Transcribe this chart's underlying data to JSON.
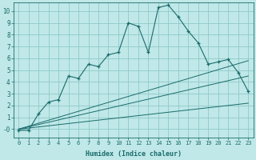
{
  "title": "",
  "xlabel": "Humidex (Indice chaleur)",
  "background_color": "#c0e8e8",
  "grid_color": "#90c8c8",
  "line_color": "#1a6b6b",
  "xlim": [
    -0.5,
    23.5
  ],
  "ylim": [
    -0.7,
    10.7
  ],
  "yticks": [
    0,
    1,
    2,
    3,
    4,
    5,
    6,
    7,
    8,
    9,
    10
  ],
  "ytick_labels": [
    "-0",
    "1",
    "2",
    "3",
    "4",
    "5",
    "6",
    "7",
    "8",
    "9",
    "10"
  ],
  "xticks": [
    0,
    1,
    2,
    3,
    4,
    5,
    6,
    7,
    8,
    9,
    10,
    11,
    12,
    13,
    14,
    15,
    16,
    17,
    18,
    19,
    20,
    21,
    22,
    23
  ],
  "curve_x": [
    0,
    1,
    2,
    3,
    4,
    5,
    6,
    7,
    8,
    9,
    10,
    11,
    12,
    13,
    14,
    15,
    16,
    17,
    18,
    19,
    20,
    21,
    22,
    23
  ],
  "curve_y": [
    -0.1,
    -0.1,
    1.3,
    2.3,
    2.5,
    4.5,
    4.3,
    5.5,
    5.3,
    6.3,
    6.5,
    9.0,
    8.7,
    6.5,
    10.3,
    10.5,
    9.5,
    8.3,
    7.3,
    5.5,
    5.7,
    5.9,
    4.8,
    3.2
  ],
  "line1_y_end": 2.2,
  "line2_y_end": 4.5,
  "line3_y_end": 5.8
}
